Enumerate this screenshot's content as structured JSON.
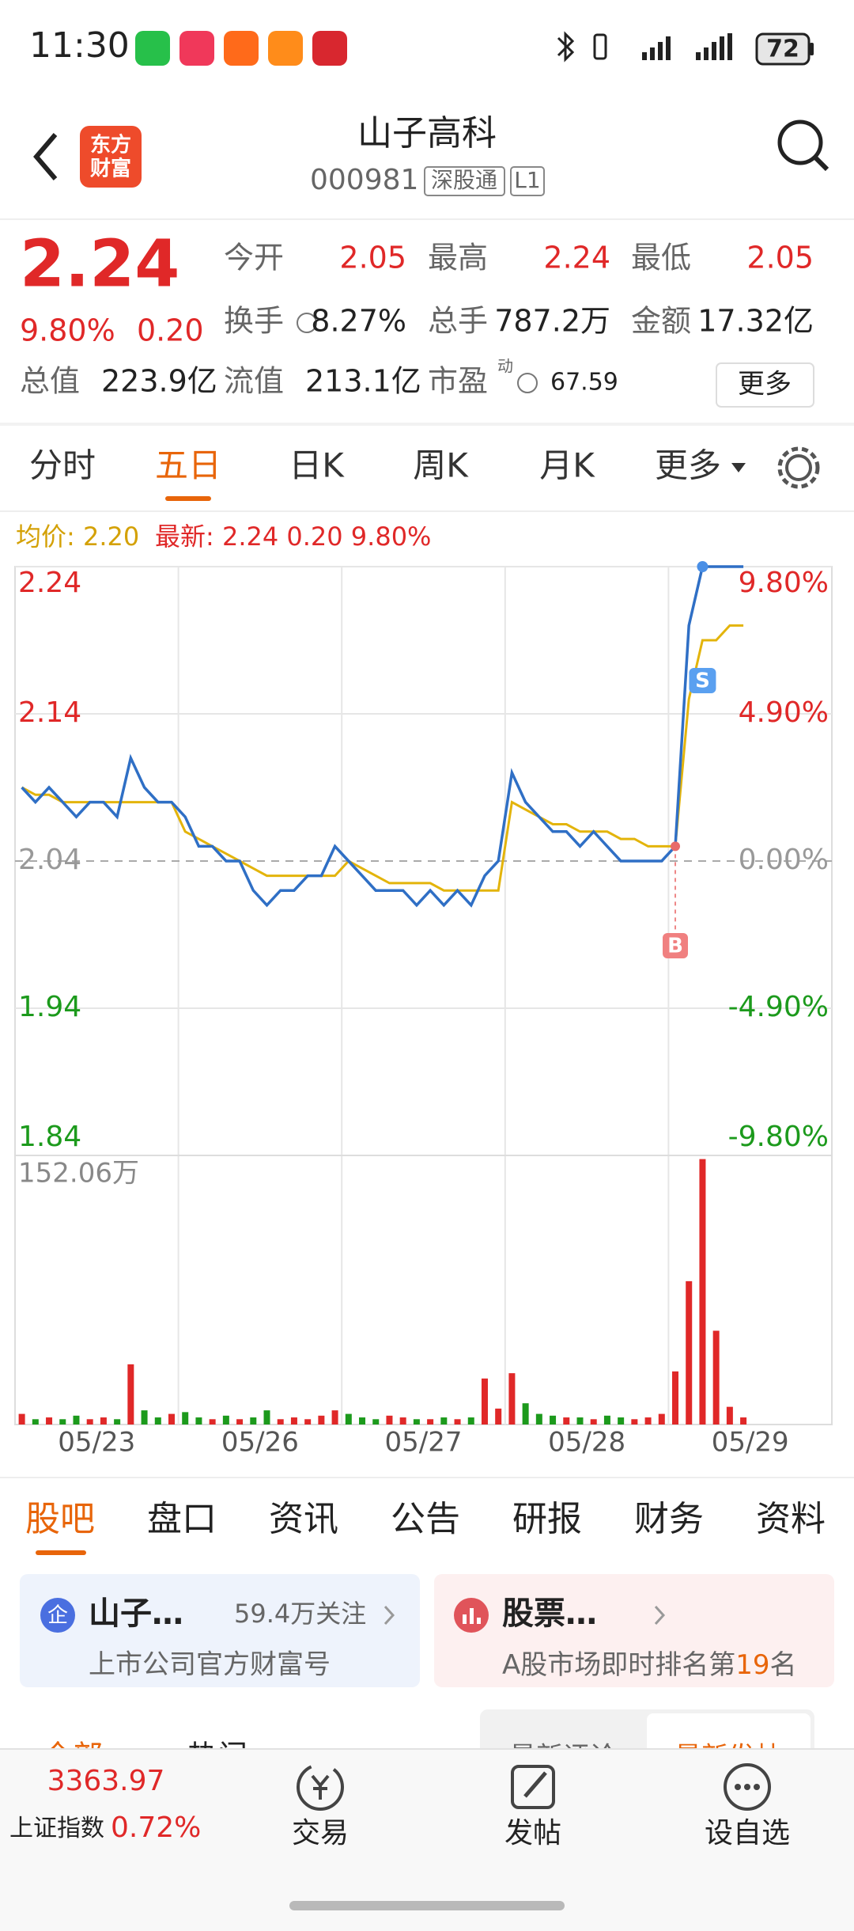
{
  "status_bar": {
    "time": "11:30",
    "battery": "72"
  },
  "header": {
    "logo": [
      "东方",
      "财富"
    ],
    "title": "山子高科",
    "code": "000981",
    "tags": [
      "深股通",
      "L1"
    ]
  },
  "quote": {
    "price": "2.24",
    "change_pct": "9.80%",
    "change": "0.20",
    "fields": [
      {
        "label": "今开",
        "value": "2.05"
      },
      {
        "label": "最高",
        "value": "2.24"
      },
      {
        "label": "最低",
        "value": "2.05"
      },
      {
        "label": "换手",
        "value": "8.27%"
      },
      {
        "label": "总手",
        "value": "787.2万"
      },
      {
        "label": "金额",
        "value": "17.32亿"
      },
      {
        "label": "总值",
        "value": "223.9亿"
      },
      {
        "label": "流值",
        "value": "213.1亿"
      },
      {
        "label": "市盈",
        "note": "动",
        "value": "67.59"
      }
    ],
    "more": "更多"
  },
  "tabs": {
    "items": [
      "分时",
      "五日",
      "日K",
      "周K",
      "月K",
      "更多"
    ],
    "active": 1
  },
  "chart_data": [
    {
      "type": "line",
      "legend": [
        "均价: 2.20",
        "最新: 2.24 0.20 9.80%"
      ],
      "days": [
        "05/23",
        "05/26",
        "05/27",
        "05/28",
        "05/29"
      ],
      "ylim": [
        1.84,
        2.24
      ],
      "yticks": [
        2.24,
        2.14,
        2.04,
        1.94,
        1.84
      ],
      "y2lim": [
        -9.8,
        9.8
      ],
      "y2ticks": [
        {
          "value": 9.8,
          "label": "9.80%"
        },
        {
          "value": 4.9,
          "label": "4.90%"
        },
        {
          "value": 0,
          "label": "0.00%"
        },
        {
          "value": -4.9,
          "label": "-4.90%"
        },
        {
          "value": -9.8,
          "label": "-9.80%"
        }
      ],
      "markers": [
        "S",
        "B"
      ],
      "series": [
        {
          "color": "#e3b40b",
          "values": [
            2.09,
            2.085,
            2.085,
            2.08,
            2.08,
            2.08,
            2.08,
            2.08,
            2.08,
            2.08,
            2.08,
            2.08,
            2.06,
            2.055,
            2.05,
            2.045,
            2.04,
            2.035,
            2.03,
            2.03,
            2.03,
            2.03,
            2.03,
            2.03,
            2.04,
            2.035,
            2.03,
            2.025,
            2.025,
            2.025,
            2.025,
            2.02,
            2.02,
            2.02,
            2.02,
            2.02,
            2.08,
            2.075,
            2.07,
            2.065,
            2.065,
            2.06,
            2.06,
            2.06,
            2.055,
            2.055,
            2.05,
            2.05,
            2.05,
            2.15,
            2.19,
            2.19,
            2.2,
            2.2,
            null,
            null,
            null,
            null,
            null,
            null
          ]
        },
        {
          "color": "#2f6fc5",
          "values": [
            2.09,
            2.08,
            2.09,
            2.08,
            2.07,
            2.08,
            2.08,
            2.07,
            2.11,
            2.09,
            2.08,
            2.08,
            2.07,
            2.05,
            2.05,
            2.04,
            2.04,
            2.02,
            2.01,
            2.02,
            2.02,
            2.03,
            2.03,
            2.05,
            2.04,
            2.03,
            2.02,
            2.02,
            2.02,
            2.01,
            2.02,
            2.01,
            2.02,
            2.01,
            2.03,
            2.04,
            2.1,
            2.08,
            2.07,
            2.06,
            2.06,
            2.05,
            2.06,
            2.05,
            2.04,
            2.04,
            2.04,
            2.04,
            2.05,
            2.2,
            2.24,
            2.24,
            2.24,
            2.24,
            null,
            null,
            null,
            null,
            null,
            null
          ]
        }
      ]
    },
    {
      "type": "bar",
      "ylim": [
        0,
        152.06
      ],
      "yticks": [
        {
          "value": 152.06,
          "label": "152.06万"
        }
      ],
      "values": [
        6,
        3,
        4,
        3,
        5,
        3,
        4,
        3,
        34,
        8,
        4,
        6,
        7,
        4,
        3,
        5,
        3,
        4,
        8,
        3,
        4,
        3,
        5,
        8,
        6,
        4,
        3,
        5,
        4,
        3,
        3,
        4,
        3,
        4,
        26,
        9,
        29,
        12,
        6,
        5,
        4,
        4,
        3,
        5,
        4,
        3,
        4,
        6,
        30,
        81,
        150,
        53,
        10,
        4,
        null,
        null,
        null,
        null,
        null,
        null
      ]
    }
  ],
  "board_tabs": {
    "items": [
      "股吧",
      "盘口",
      "资讯",
      "公告",
      "研报",
      "财务",
      "资料"
    ],
    "active": 0
  },
  "cards": [
    {
      "icon": "企",
      "title": "山子…",
      "meta": "59.4万关注",
      "sub": "上市公司官方财富号"
    },
    {
      "title": "股票…",
      "sub": [
        "A股市场即时排名第",
        "19",
        "名"
      ]
    }
  ],
  "feed_tabs": [
    "全部",
    "热门",
    "最新评论",
    "最新发帖"
  ],
  "bottom_bar": {
    "index_value": "3363.97",
    "index_name": "上证指数",
    "index_change": "0.72%",
    "buttons": [
      "交易",
      "发帖",
      "设自选"
    ]
  }
}
